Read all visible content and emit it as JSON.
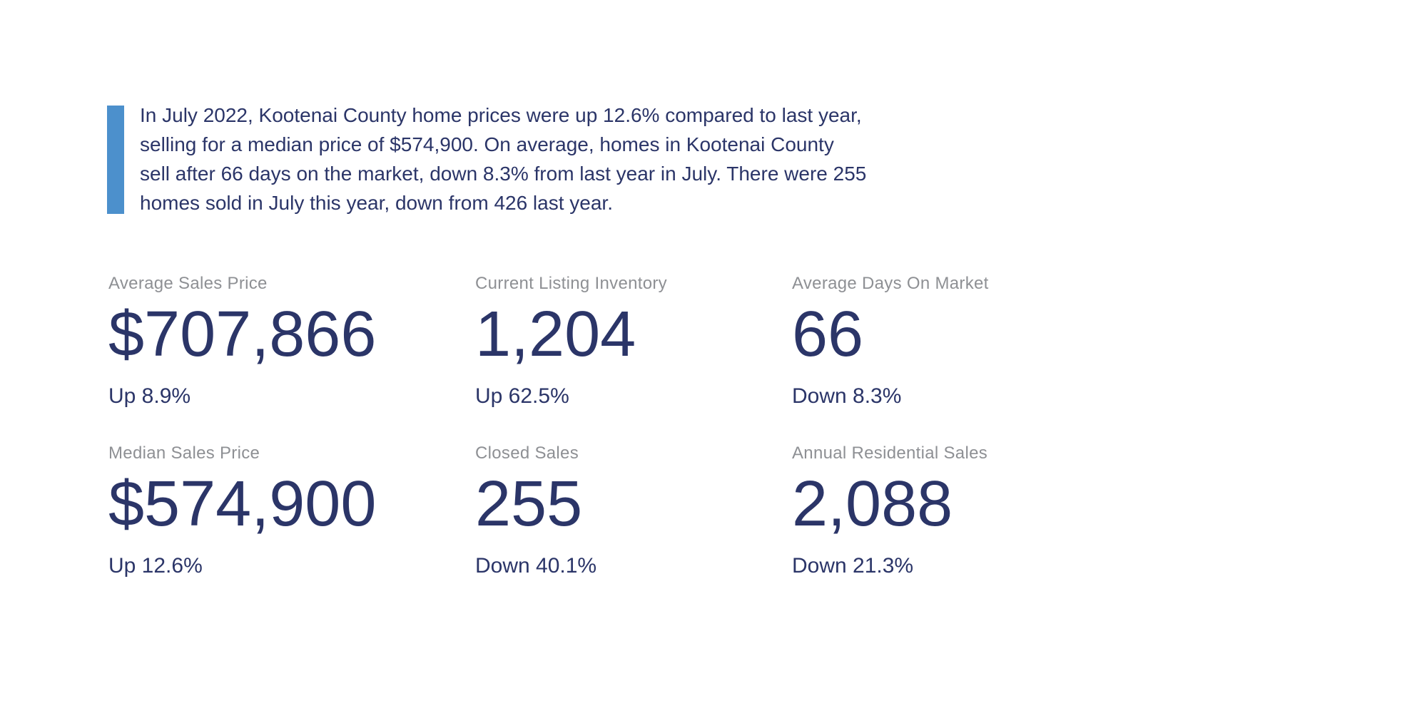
{
  "theme": {
    "background": "#ffffff",
    "accent_blue": "#4C90CC",
    "navy_text": "#2B3568",
    "label_gray": "#8E9094"
  },
  "summary": {
    "text": "In July 2022, Kootenai County home prices were up 12.6% compared to last year, selling for a median price of $574,900. On average, homes in Kootenai County sell after 66 days on the market, down 8.3% from last year in July. There were 255 homes sold in July this year, down from 426 last year.",
    "lines": [
      "In July 2022, Kootenai County home prices were up 12.6% compared to last year,",
      "selling for a median price of $574,900. On average, homes in Kootenai County",
      "sell after 66 days on the market, down 8.3% from last year in July. There were 255",
      "homes sold in July this year, down from 426 last year."
    ]
  },
  "stats": [
    {
      "label": "Average Sales Price",
      "value": "$707,866",
      "delta": "Up 8.9%"
    },
    {
      "label": "Current Listing Inventory",
      "value": "1,204",
      "delta": "Up 62.5%"
    },
    {
      "label": "Average Days On Market",
      "value": "66",
      "delta": "Down 8.3%"
    },
    {
      "label": "Median Sales Price",
      "value": "$574,900",
      "delta": "Up 12.6%"
    },
    {
      "label": "Closed Sales",
      "value": "255",
      "delta": "Down 40.1%"
    },
    {
      "label": "Annual Residential Sales",
      "value": "2,088",
      "delta": "Down 21.3%"
    }
  ]
}
